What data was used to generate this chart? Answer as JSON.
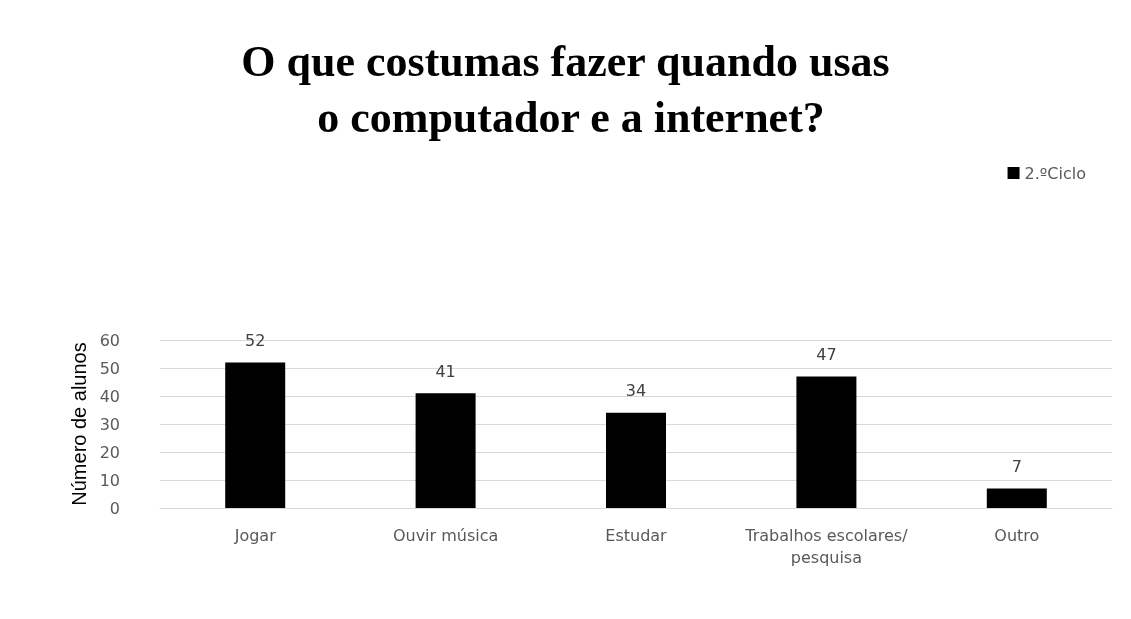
{
  "chart_data": {
    "type": "bar",
    "title": "O que costumas fazer quando usas o computador e a internet?",
    "ylabel": "Número de alunos",
    "categories": [
      "Jogar",
      "Ouvir música",
      "Estudar",
      "Trabalhos escolares/pesquisa",
      "Outro"
    ],
    "series": [
      {
        "name": "2.ºCiclo",
        "color": "#000000",
        "values": [
          52,
          41,
          34,
          47,
          7
        ]
      }
    ],
    "ylim": [
      0,
      60
    ],
    "yticks": [
      0,
      10,
      20,
      30,
      40,
      50,
      60
    ],
    "grid": "y",
    "legend": "top right",
    "data_labels": true
  }
}
